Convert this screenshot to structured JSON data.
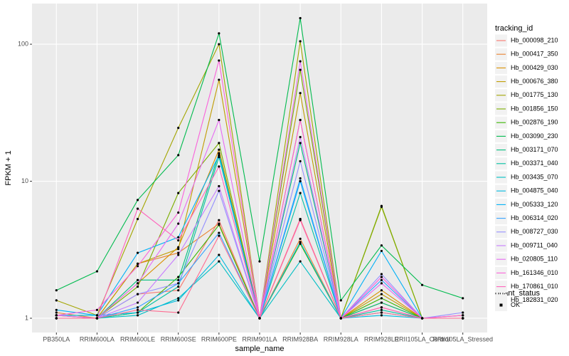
{
  "chart_data": {
    "type": "line",
    "log_y": true,
    "grid": true,
    "x_label": "sample_name",
    "y_label": "FPKM + 1",
    "categories": [
      "PB350LA",
      "RRIM600LA",
      "RRIM600LE",
      "RRIM600SE",
      "RRIM600PE",
      "RRIM901LA",
      "RRIM928BA",
      "RRIM928LA",
      "RRIM928LE",
      "RRII105LA_Control",
      "RRII105LA_Stressed"
    ],
    "ylim": [
      0.787,
      198
    ],
    "yticks": [
      1,
      10,
      100
    ],
    "legend_title": "tracking_id",
    "point_legend": {
      "title": "quant_status",
      "label": "OK",
      "color": "#000000"
    },
    "series": [
      {
        "name": "Hb_000098_210",
        "color": "#F8766D",
        "values": [
          1.05,
          1.0,
          1.5,
          1.6,
          5.2,
          1.0,
          5.3,
          1.0,
          1.2,
          1.0,
          1.0
        ]
      },
      {
        "name": "Hb_000417_350",
        "color": "#EA8331",
        "values": [
          1.1,
          1.0,
          2.5,
          3.0,
          4.9,
          1.0,
          3.8,
          1.0,
          1.3,
          1.0,
          1.0
        ]
      },
      {
        "name": "Hb_000429_030",
        "color": "#D89000",
        "values": [
          1.0,
          1.0,
          1.8,
          3.3,
          17,
          1.0,
          28,
          1.0,
          1.6,
          1.0,
          1.05
        ]
      },
      {
        "name": "Hb_000676_380",
        "color": "#C09B00",
        "values": [
          1.05,
          1.0,
          2.5,
          3.2,
          55,
          1.0,
          44,
          1.0,
          1.5,
          1.0,
          1.0
        ]
      },
      {
        "name": "Hb_001775_130",
        "color": "#A3A500",
        "values": [
          1.35,
          1.05,
          5.3,
          24.5,
          100,
          1.0,
          105,
          1.0,
          6.5,
          1.0,
          1.0
        ]
      },
      {
        "name": "Hb_001856_150",
        "color": "#7CAE00",
        "values": [
          1.0,
          1.0,
          1.7,
          8.2,
          19,
          1.0,
          65,
          1.0,
          6.6,
          1.0,
          1.0
        ]
      },
      {
        "name": "Hb_002876_190",
        "color": "#39B600",
        "values": [
          1.0,
          1.0,
          1.1,
          2.0,
          4.8,
          1.0,
          3.5,
          1.0,
          1.4,
          1.0,
          1.0
        ]
      },
      {
        "name": "Hb_003090_230",
        "color": "#00BB4E",
        "values": [
          1.6,
          2.2,
          7.3,
          15.5,
          120,
          2.6,
          155,
          1.35,
          3.4,
          1.75,
          1.4
        ]
      },
      {
        "name": "Hb_003171_070",
        "color": "#00BF7D",
        "values": [
          1.0,
          1.0,
          1.9,
          1.9,
          16,
          1.0,
          19,
          1.0,
          1.3,
          1.0,
          1.0
        ]
      },
      {
        "name": "Hb_003371_040",
        "color": "#00C1A3",
        "values": [
          1.0,
          1.0,
          1.1,
          1.7,
          15,
          1.0,
          8.2,
          1.0,
          1.15,
          1.0,
          1.0
        ]
      },
      {
        "name": "Hb_003435_070",
        "color": "#00BFC4",
        "values": [
          1.0,
          1.0,
          1.05,
          1.4,
          2.6,
          1.0,
          2.6,
          1.0,
          1.1,
          1.0,
          1.0
        ]
      },
      {
        "name": "Hb_004875_040",
        "color": "#00BAE0",
        "values": [
          1.05,
          1.05,
          1.1,
          1.35,
          2.9,
          1.0,
          3.6,
          1.0,
          1.05,
          1.0,
          1.0
        ]
      },
      {
        "name": "Hb_005333_120",
        "color": "#00B0F6",
        "values": [
          1.15,
          1.05,
          3.0,
          3.9,
          15.5,
          1.0,
          10,
          1.0,
          3.1,
          1.0,
          1.0
        ]
      },
      {
        "name": "Hb_006314_020",
        "color": "#35A2FF",
        "values": [
          1.0,
          1.0,
          1.2,
          1.8,
          4.2,
          1.0,
          10.5,
          1.0,
          1.9,
          1.0,
          1.0
        ]
      },
      {
        "name": "Hb_008727_030",
        "color": "#9590FF",
        "values": [
          1.0,
          1.0,
          1.5,
          1.8,
          8.5,
          1.0,
          14,
          1.0,
          2.1,
          1.0,
          1.1
        ]
      },
      {
        "name": "Hb_009711_040",
        "color": "#C77CFF",
        "values": [
          1.0,
          1.0,
          1.3,
          2.9,
          9.2,
          1.0,
          21,
          1.0,
          2.0,
          1.0,
          1.0
        ]
      },
      {
        "name": "Hb_020805_110",
        "color": "#E76BF3",
        "values": [
          1.05,
          1.0,
          1.8,
          4.9,
          28,
          1.0,
          75,
          1.0,
          1.8,
          1.0,
          1.0
        ]
      },
      {
        "name": "Hb_161346_010",
        "color": "#FA62DB",
        "values": [
          1.05,
          1.15,
          2.4,
          5.9,
          76,
          1.0,
          28,
          1.0,
          2.0,
          1.0,
          1.05
        ]
      },
      {
        "name": "Hb_170861_010",
        "color": "#FF62BC",
        "values": [
          1.0,
          1.0,
          6.3,
          3.7,
          12.8,
          1.0,
          5.2,
          1.0,
          1.2,
          1.0,
          1.0
        ]
      },
      {
        "name": "Hb_182831_020",
        "color": "#FF6C91",
        "values": [
          1.0,
          1.0,
          1.15,
          1.1,
          4.0,
          1.0,
          5.3,
          1.0,
          1.1,
          1.0,
          1.0
        ]
      }
    ]
  }
}
